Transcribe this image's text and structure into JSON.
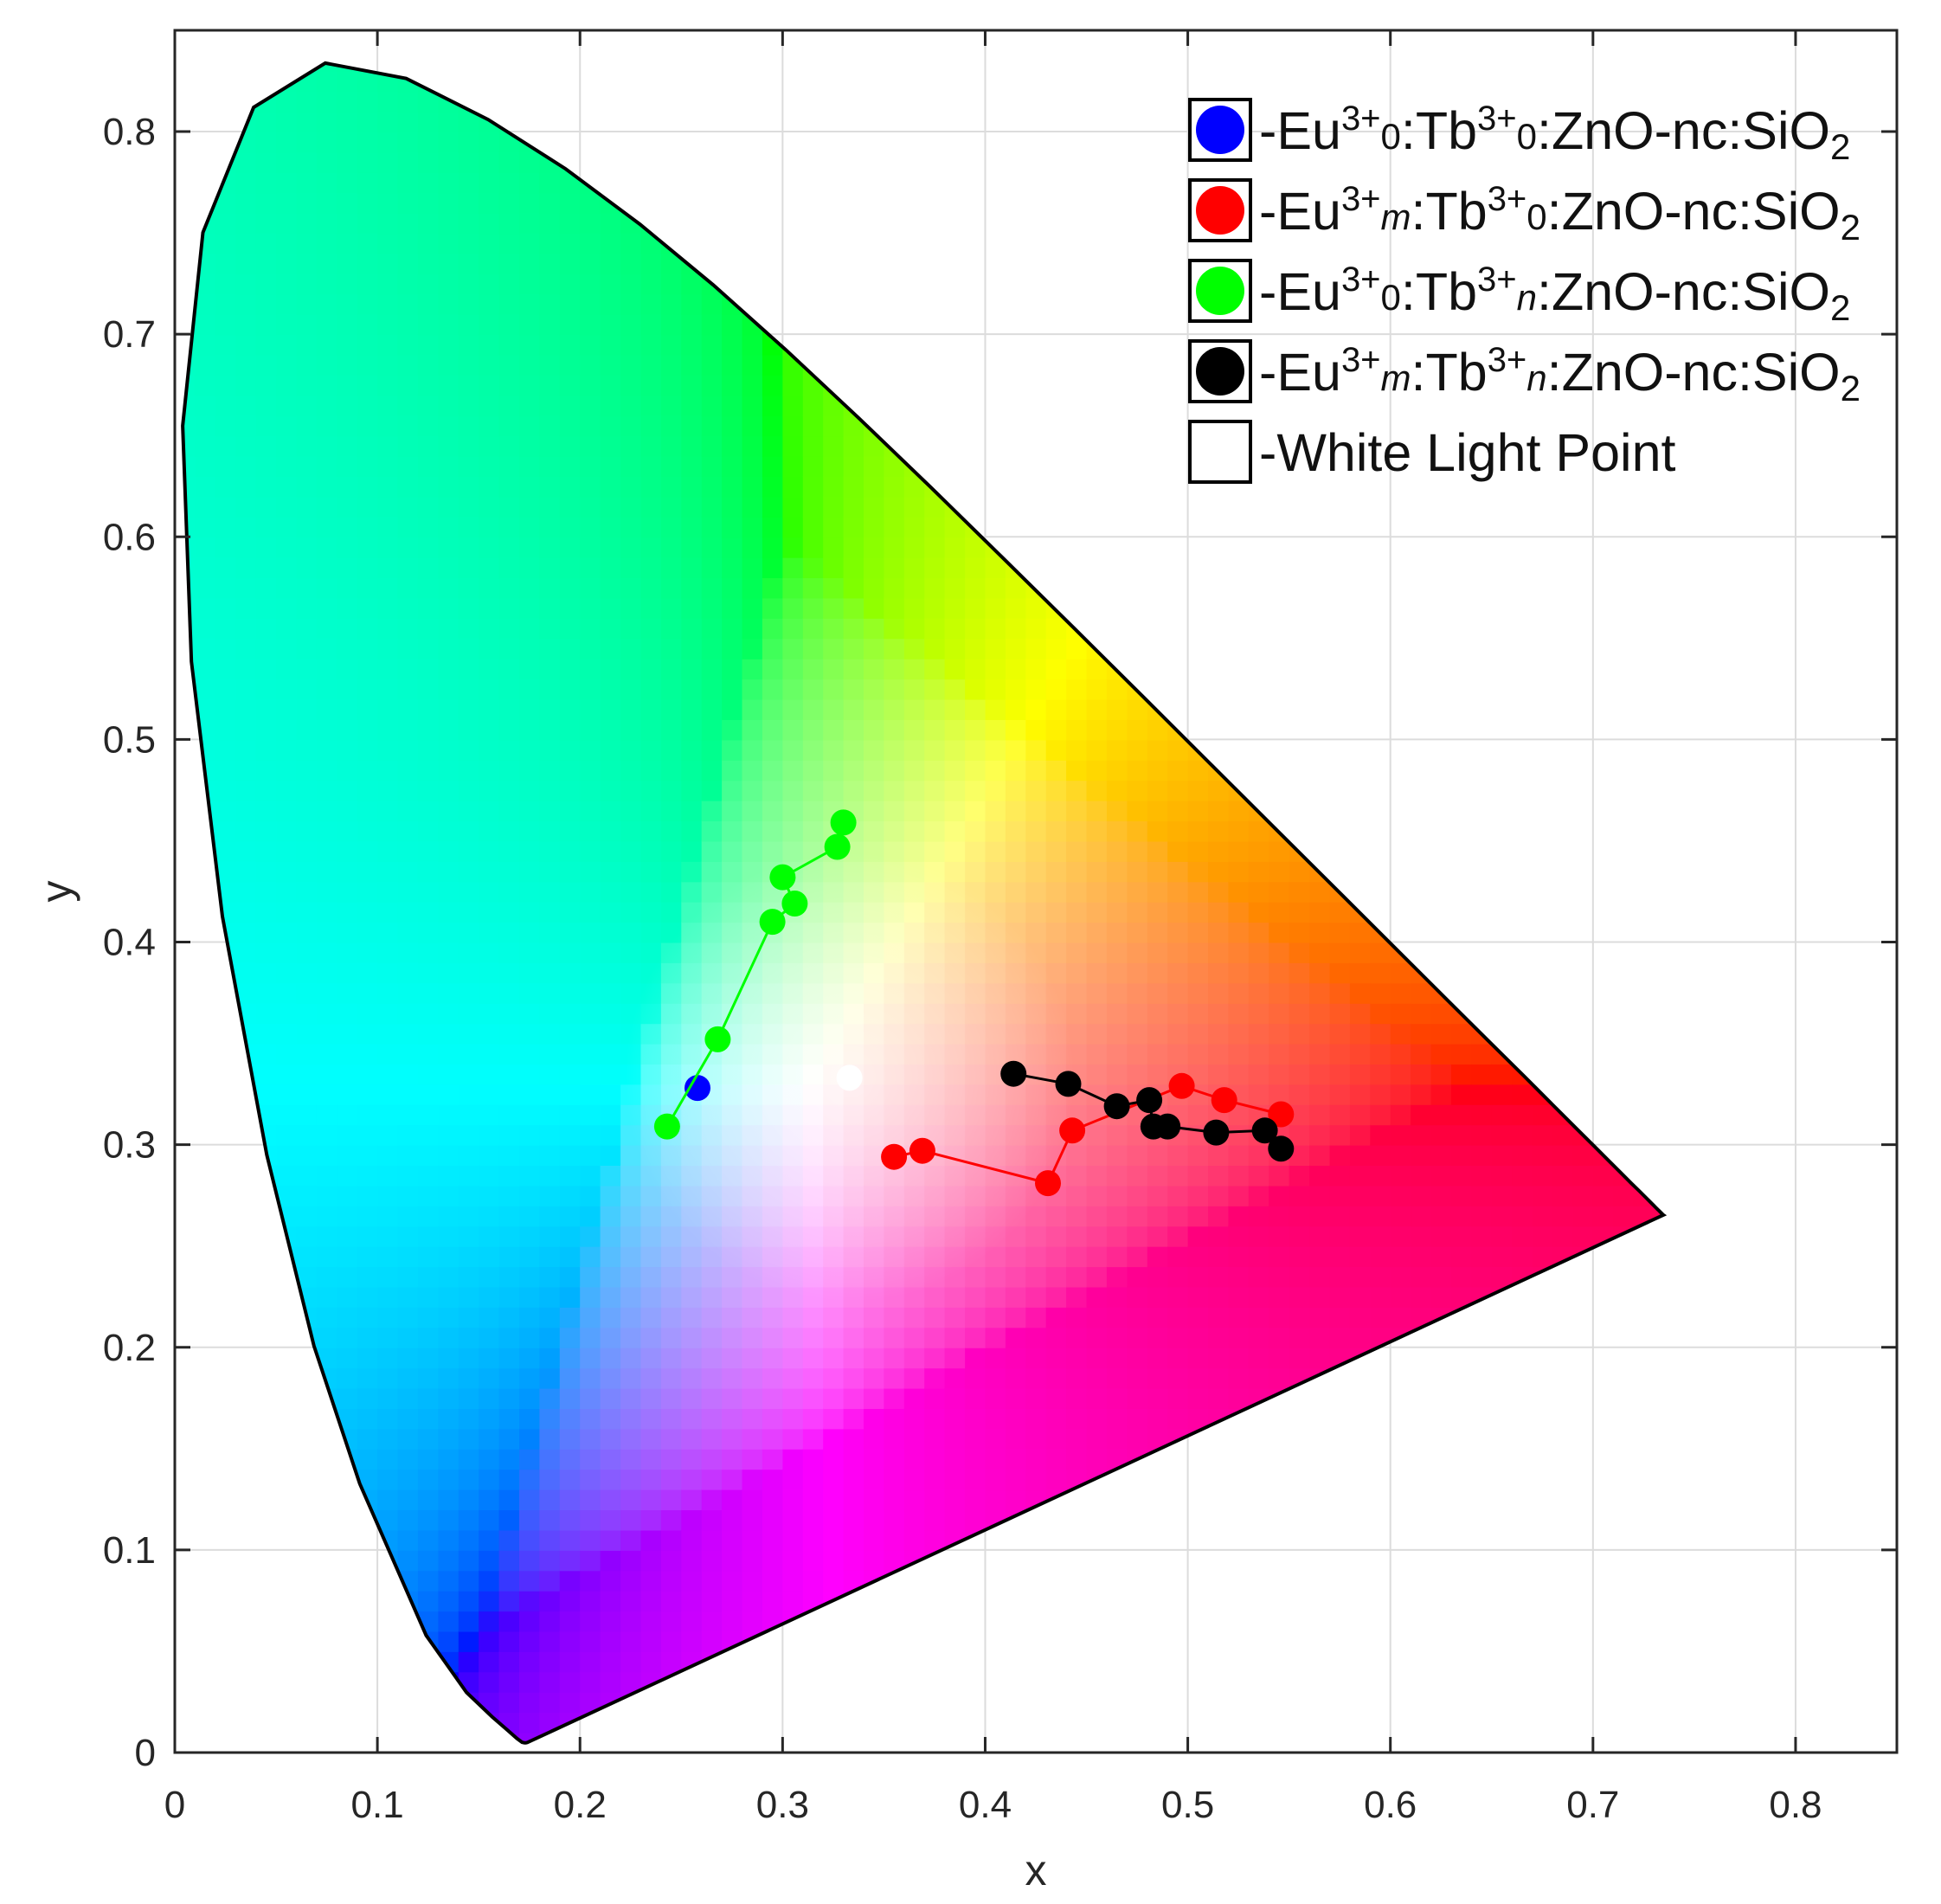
{
  "chart_data": {
    "type": "scatter",
    "title": "",
    "xlabel": "x",
    "ylabel": "y",
    "xlim": [
      0,
      0.85
    ],
    "ylim": [
      0,
      0.85
    ],
    "xticks": [
      0,
      0.1,
      0.2,
      0.3,
      0.4,
      0.5,
      0.6,
      0.7,
      0.8
    ],
    "yticks": [
      0,
      0.1,
      0.2,
      0.3,
      0.4,
      0.5,
      0.6,
      0.7,
      0.8
    ],
    "xtick_labels": [
      "0",
      "0.1",
      "0.2",
      "0.3",
      "0.4",
      "0.5",
      "0.6",
      "0.7",
      "0.8"
    ],
    "ytick_labels": [
      "0",
      "0.1",
      "0.2",
      "0.3",
      "0.4",
      "0.5",
      "0.6",
      "0.7",
      "0.8"
    ],
    "grid": true,
    "legend_position": "top-right",
    "background": "CIE 1931 chromaticity diagram",
    "series": [
      {
        "name": "-Eu3+0:Tb3+0:ZnO-nc:SiO2",
        "color": "#0000ff",
        "connected": false,
        "points": [
          [
            0.258,
            0.328
          ]
        ]
      },
      {
        "name": "-Eu3+m:Tb3+0:ZnO-nc:SiO2",
        "color": "#ff0000",
        "connected": true,
        "points": [
          [
            0.355,
            0.294
          ],
          [
            0.369,
            0.297
          ],
          [
            0.431,
            0.281
          ],
          [
            0.443,
            0.307
          ],
          [
            0.497,
            0.329
          ],
          [
            0.518,
            0.322
          ],
          [
            0.546,
            0.315
          ]
        ]
      },
      {
        "name": "-Eu3+0:Tb3+n:ZnO-nc:SiO2",
        "color": "#00ff00",
        "connected": true,
        "points": [
          [
            0.243,
            0.309
          ],
          [
            0.268,
            0.352
          ],
          [
            0.295,
            0.41
          ],
          [
            0.306,
            0.419
          ],
          [
            0.3,
            0.432
          ],
          [
            0.327,
            0.447
          ],
          [
            0.33,
            0.459
          ]
        ]
      },
      {
        "name": "-Eu3+m:Tb3+n:ZnO-nc:SiO2",
        "color": "#000000",
        "connected": true,
        "points": [
          [
            0.414,
            0.335
          ],
          [
            0.441,
            0.33
          ],
          [
            0.465,
            0.319
          ],
          [
            0.481,
            0.322
          ],
          [
            0.483,
            0.309
          ],
          [
            0.49,
            0.309
          ],
          [
            0.514,
            0.306
          ],
          [
            0.538,
            0.307
          ],
          [
            0.546,
            0.298
          ]
        ]
      },
      {
        "name": "-White Light Point",
        "color": "#ffffff",
        "connected": false,
        "points": [
          [
            0.333,
            0.333
          ]
        ]
      }
    ],
    "legend": [
      {
        "prefix": "-Eu",
        "sup1": "3+",
        "sub1": "0",
        "mid": ":Tb",
        "sup2": "3+",
        "sub2": "0",
        "suffix": ":ZnO-nc:SiO",
        "sub3": "2",
        "sub1_italic": false,
        "sub2_italic": false
      },
      {
        "prefix": "-Eu",
        "sup1": "3+",
        "sub1": "m",
        "mid": ":Tb",
        "sup2": "3+",
        "sub2": "0",
        "suffix": ":ZnO-nc:SiO",
        "sub3": "2",
        "sub1_italic": true,
        "sub2_italic": false
      },
      {
        "prefix": "-Eu",
        "sup1": "3+",
        "sub1": "0",
        "mid": ":Tb",
        "sup2": "3+",
        "sub2": "n",
        "suffix": ":ZnO-nc:SiO",
        "sub3": "2",
        "sub1_italic": false,
        "sub2_italic": true
      },
      {
        "prefix": "-Eu",
        "sup1": "3+",
        "sub1": "m",
        "mid": ":Tb",
        "sup2": "3+",
        "sub2": "n",
        "suffix": ":ZnO-nc:SiO",
        "sub3": "2",
        "sub1_italic": true,
        "sub2_italic": true
      },
      {
        "plain": "-White Light Point"
      }
    ]
  }
}
